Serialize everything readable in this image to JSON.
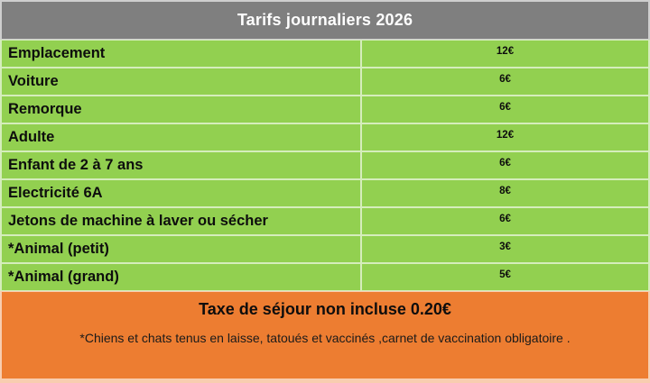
{
  "table": {
    "title": "Tarifs journaliers 2026",
    "rows": [
      {
        "label": "Emplacement",
        "price": "12€"
      },
      {
        "label": "Voiture",
        "price": "6€"
      },
      {
        "label": "Remorque",
        "price": "6€"
      },
      {
        "label": "Adulte",
        "price": "12€"
      },
      {
        "label": "Enfant de 2 à 7 ans",
        "price": "6€"
      },
      {
        "label": "Electricité 6A",
        "price": "8€"
      },
      {
        "label": "Jetons de machine à laver ou sécher",
        "price": "6€"
      },
      {
        "label": "*Animal (petit)",
        "price": "3€"
      },
      {
        "label": "*Animal (grand)",
        "price": "5€"
      }
    ],
    "footer": {
      "title": "Taxe de séjour non incluse 0.20€",
      "note": "*Chiens et chats tenus en laisse, tatoués et vaccinés ,carnet de vaccination obligatoire ."
    },
    "colors": {
      "header_bg": "#7f7f7f",
      "row_bg": "#92d050",
      "footer_bg": "#ed7d31",
      "header_text": "#ffffff",
      "body_text": "#0d0d0d"
    }
  }
}
